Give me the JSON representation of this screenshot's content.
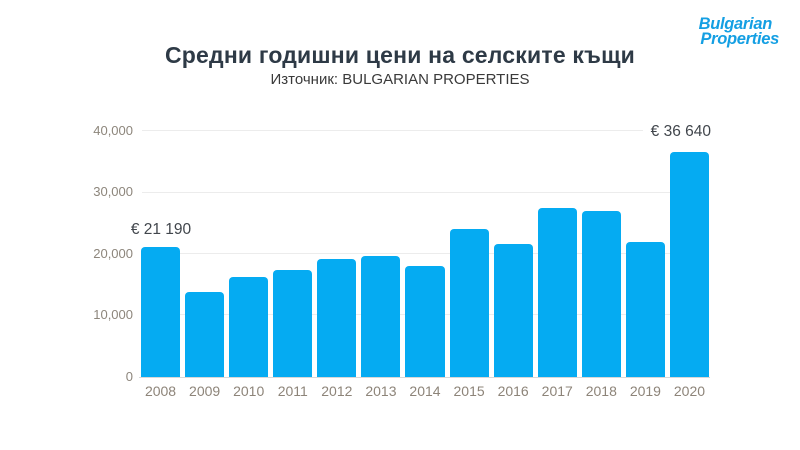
{
  "header": {
    "title": "Средни годишни цени на селските къщи",
    "subtitle": "Източник: BULGARIAN PROPERTIES"
  },
  "logo": {
    "line1": "Bulgarian",
    "line2": "Properties",
    "color": "#149FE3"
  },
  "chart_data": {
    "type": "bar",
    "title": "Средни годишни цени на селските къщи",
    "subtitle": "Източник: BULGARIAN PROPERTIES",
    "categories": [
      "2008",
      "2009",
      "2010",
      "2011",
      "2012",
      "2013",
      "2014",
      "2015",
      "2016",
      "2017",
      "2018",
      "2019",
      "2020"
    ],
    "values": [
      21190,
      13900,
      16300,
      17400,
      19200,
      19600,
      18000,
      24000,
      21600,
      27400,
      27000,
      22000,
      36640
    ],
    "annotations": [
      {
        "category": "2008",
        "label": "€ 21 190",
        "value": 21190
      },
      {
        "category": "2020",
        "label": "€ 36 640",
        "value": 36640
      }
    ],
    "xlabel": "",
    "ylabel": "",
    "ylim": [
      0,
      40000
    ],
    "yticks": [
      0,
      10000,
      20000,
      30000,
      40000
    ],
    "ytick_labels": [
      "0",
      "10,000",
      "20,000",
      "30,000",
      "40,000"
    ],
    "grid": true,
    "legend": "none",
    "bar_color": "#05ABF2",
    "gridline_color": "#ECECEC",
    "axis_label_color": "#8D867C",
    "annotation_color": "#41464C"
  }
}
